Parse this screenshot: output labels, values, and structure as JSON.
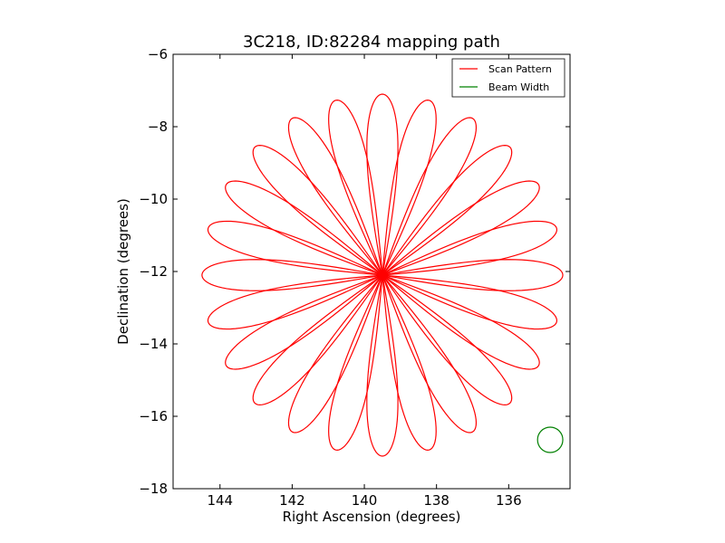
{
  "chart_data": {
    "type": "line",
    "title": "3C218, ID:82284 mapping path",
    "xlabel": "Right Ascension (degrees)",
    "ylabel": "Declination (degrees)",
    "xlim": [
      145.3,
      134.3
    ],
    "ylim": [
      -18,
      -6
    ],
    "x_ticks": [
      144,
      142,
      140,
      138,
      136
    ],
    "x_tick_labels": [
      "144",
      "142",
      "140",
      "138",
      "136"
    ],
    "y_ticks": [
      -6,
      -8,
      -10,
      -12,
      -14,
      -16,
      -18
    ],
    "y_tick_labels": [
      "−6",
      "−8",
      "−10",
      "−12",
      "−14",
      "−16",
      "−18"
    ],
    "grid": false,
    "legend_position": "top-right",
    "series": [
      {
        "name": "Scan Pattern",
        "color": "#ff0000",
        "kind": "rose",
        "center": [
          139.5,
          -12.1
        ],
        "radius": 5.0,
        "petals": 24,
        "petal_width_deg": 4.5,
        "lobe_angles_deg": [
          0,
          15,
          30,
          45,
          60,
          75,
          90,
          105,
          120,
          135,
          150,
          165,
          180,
          195,
          210,
          225,
          240,
          255,
          270,
          285,
          300,
          315,
          330,
          345
        ]
      },
      {
        "name": "Beam Width",
        "color": "#008000",
        "kind": "circle",
        "center": [
          134.85,
          -16.65
        ],
        "radius": 0.35
      }
    ]
  }
}
